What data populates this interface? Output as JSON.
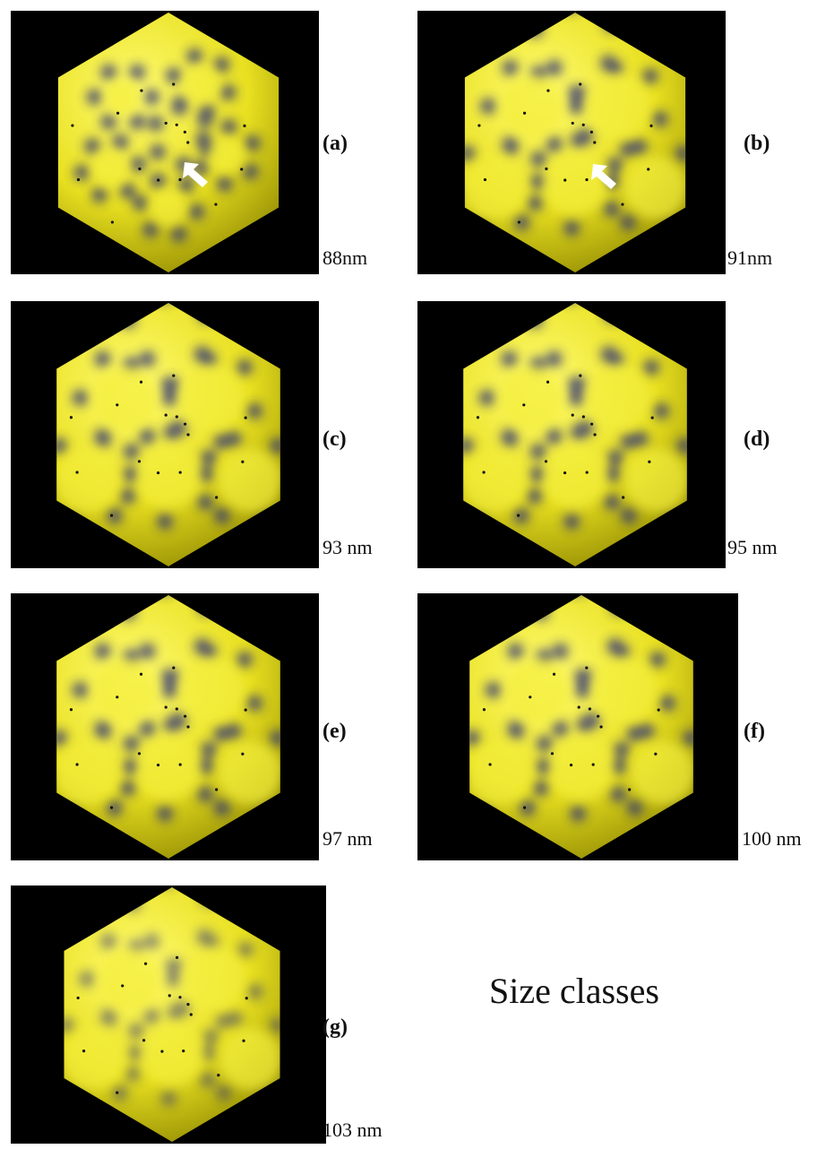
{
  "panels": [
    {
      "label": "(a)",
      "size": "88nm",
      "arrow": true,
      "style": "a"
    },
    {
      "label": "(b)",
      "size": "91nm",
      "arrow": true,
      "style": "b"
    },
    {
      "label": "(c)",
      "size": "93 nm",
      "arrow": false,
      "style": "c"
    },
    {
      "label": "(d)",
      "size": "95 nm",
      "arrow": false,
      "style": "c"
    },
    {
      "label": "(e)",
      "size": "97 nm",
      "arrow": false,
      "style": "e"
    },
    {
      "label": "(f)",
      "size": "100 nm",
      "arrow": false,
      "style": "f"
    },
    {
      "label": "(g)",
      "size": "103 nm",
      "arrow": false,
      "style": "g"
    }
  ],
  "caption": "Size classes",
  "colors": {
    "shell": "#e8e020",
    "shell_shadow": "#8a8300",
    "dark_band": "#2a2f78",
    "background": "#000000",
    "arrow": "#ffffff"
  }
}
